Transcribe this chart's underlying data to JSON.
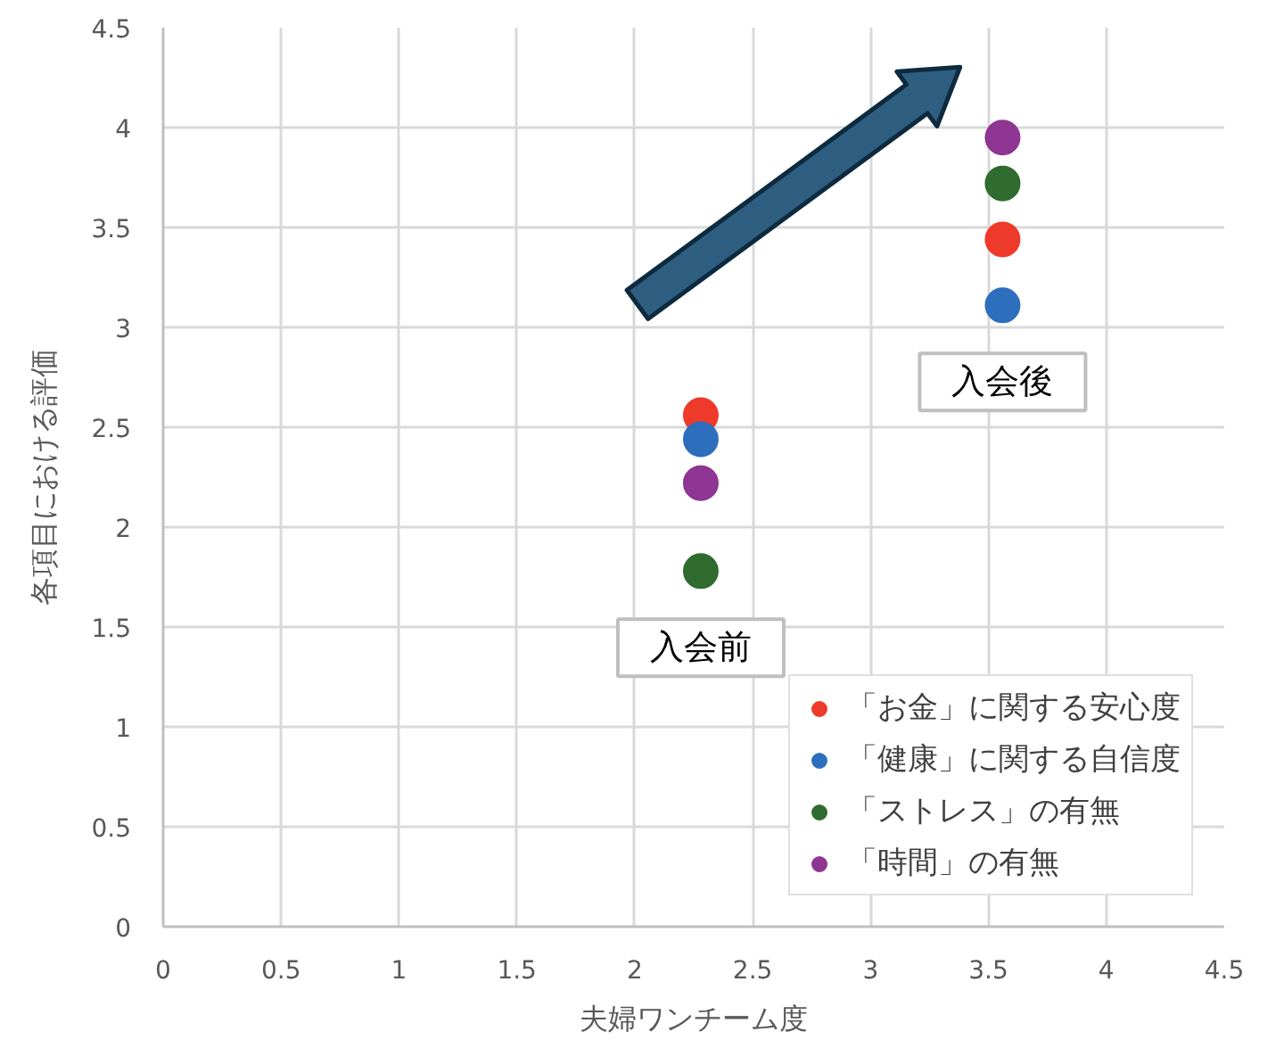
{
  "chart_data": {
    "type": "scatter",
    "xlabel": "夫婦ワンチーム度",
    "ylabel": "各項目における評価",
    "xlim": [
      0,
      4.5
    ],
    "ylim": [
      0,
      4.5
    ],
    "xticks": [
      0,
      0.5,
      1,
      1.5,
      2,
      2.5,
      3,
      3.5,
      4,
      4.5
    ],
    "yticks": [
      0,
      0.5,
      1,
      1.5,
      2,
      2.5,
      3,
      3.5,
      4,
      4.5
    ],
    "grid": true,
    "legend": "bottom right",
    "marker": "circle",
    "x": [
      2.28,
      3.56
    ],
    "series": [
      {
        "name": "「お金」に関する安心度",
        "color": "#ee3a2a",
        "values": [
          2.56,
          3.44
        ]
      },
      {
        "name": "「健康」に関する自信度",
        "color": "#2e6fbd",
        "values": [
          2.44,
          3.11
        ]
      },
      {
        "name": "「ストレス」の有無",
        "color": "#306b2f",
        "values": [
          1.78,
          3.72
        ]
      },
      {
        "name": "「時間」の有無",
        "color": "#8f3593",
        "values": [
          2.22,
          3.95
        ]
      }
    ],
    "annotations": [
      "入会前",
      "入会後"
    ]
  }
}
